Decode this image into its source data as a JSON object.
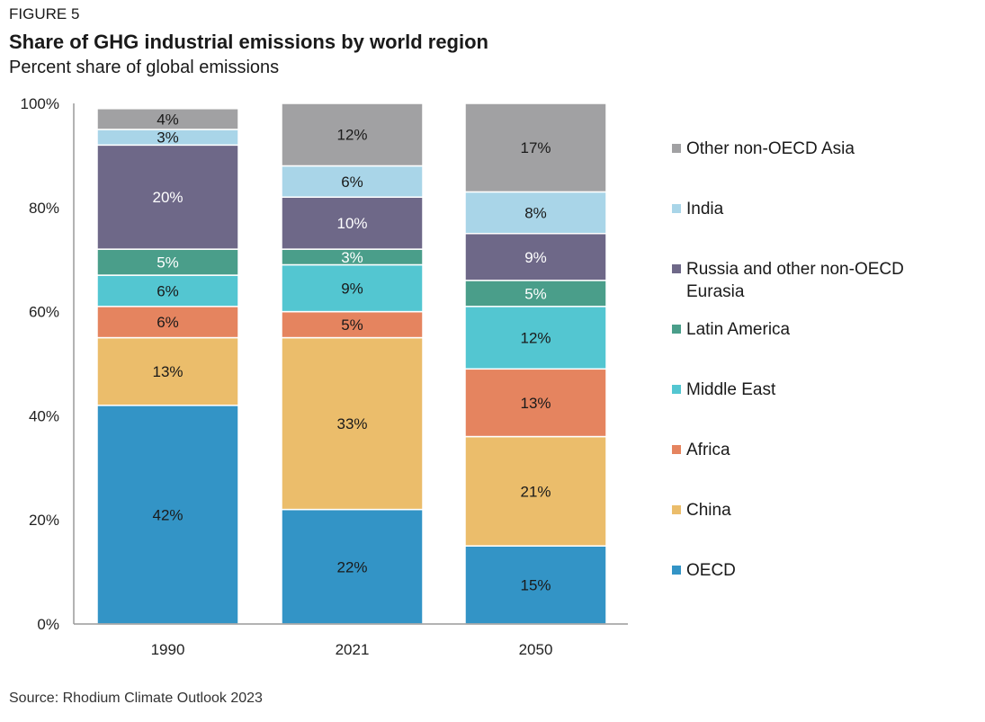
{
  "header": {
    "figure_label": "FIGURE 5",
    "title": "Share of GHG industrial emissions by world region",
    "subtitle": "Percent share of global emissions"
  },
  "footer": {
    "source": "Source: Rhodium Climate Outlook 2023"
  },
  "chart_data": {
    "type": "bar",
    "stacked": true,
    "categories": [
      "1990",
      "2021",
      "2050"
    ],
    "ylim": [
      0,
      100
    ],
    "yticks": [
      "0%",
      "20%",
      "40%",
      "60%",
      "80%",
      "100%"
    ],
    "legend_position": "right",
    "series": [
      {
        "name": "OECD",
        "color": "#3394c6",
        "values": [
          42,
          22,
          15
        ],
        "labels": [
          "42%",
          "22%",
          "15%"
        ]
      },
      {
        "name": "China",
        "color": "#ebbd6b",
        "values": [
          13,
          33,
          21
        ],
        "labels": [
          "13%",
          "33%",
          "21%"
        ]
      },
      {
        "name": "Africa",
        "color": "#e5845f",
        "values": [
          6,
          5,
          13
        ],
        "labels": [
          "6%",
          "5%",
          "13%"
        ]
      },
      {
        "name": "Middle East",
        "color": "#53c6d1",
        "values": [
          6,
          9,
          12
        ],
        "labels": [
          "6%",
          "9%",
          "12%"
        ]
      },
      {
        "name": "Latin America",
        "color": "#4a9e8a",
        "values": [
          5,
          3,
          5
        ],
        "labels": [
          "5%",
          "3%",
          "5%"
        ]
      },
      {
        "name": "Russia and other non-OECD Eurasia",
        "color": "#6e6888",
        "values": [
          20,
          10,
          9
        ],
        "labels": [
          "20%",
          "10%",
          "9%"
        ]
      },
      {
        "name": "India",
        "color": "#a9d5e8",
        "values": [
          3,
          6,
          8
        ],
        "labels": [
          "3%",
          "6%",
          "8%"
        ]
      },
      {
        "name": "Other non-OECD Asia",
        "color": "#a1a1a3",
        "values": [
          4,
          12,
          17
        ],
        "labels": [
          "4%",
          "12%",
          "17%"
        ]
      }
    ]
  }
}
